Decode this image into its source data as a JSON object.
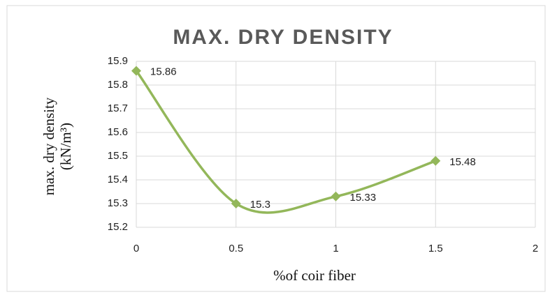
{
  "chart_data": {
    "type": "line",
    "title": "MAX. DRY DENSITY",
    "x_label": "%of coir fiber",
    "y_label": [
      "max. dry density",
      "(kN/m³)"
    ],
    "x": [
      0,
      0.5,
      1,
      1.5
    ],
    "series": [
      {
        "name": "max. dry density",
        "color": "#93b75a",
        "values": [
          15.86,
          15.3,
          15.33,
          15.48
        ]
      }
    ],
    "xlim": [
      0,
      2
    ],
    "xticks": [
      0,
      0.5,
      1,
      1.5,
      2
    ],
    "ylim": [
      15.2,
      15.9
    ],
    "yticks": [
      15.2,
      15.3,
      15.4,
      15.5,
      15.6,
      15.7,
      15.8,
      15.9
    ],
    "grid": true,
    "smooth": true,
    "data_labels": true
  }
}
